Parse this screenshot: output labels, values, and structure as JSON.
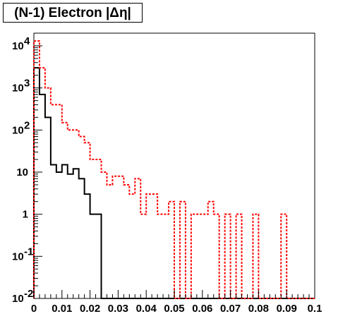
{
  "chart_data": {
    "type": "line",
    "title": "(N-1) Electron |Δη|",
    "xlabel": "",
    "ylabel": "",
    "x_range": [
      0,
      0.1
    ],
    "y_range": [
      0.01,
      20000
    ],
    "y_scale": "log",
    "x_tick_labels": [
      "0",
      "0.01",
      "0.02",
      "0.03",
      "0.04",
      "0.05",
      "0.06",
      "0.07",
      "0.08",
      "0.09",
      "0.1"
    ],
    "y_tick_labels": [
      {
        "value": 0.01,
        "base": "10",
        "exp": "-2"
      },
      {
        "value": 0.1,
        "base": "10",
        "exp": "-1"
      },
      {
        "value": 1,
        "base": "1",
        "exp": ""
      },
      {
        "value": 10,
        "base": "10",
        "exp": ""
      },
      {
        "value": 100,
        "base": "10",
        "exp": "2"
      },
      {
        "value": 1000,
        "base": "10",
        "exp": "3"
      },
      {
        "value": 10000,
        "base": "10",
        "exp": "4"
      }
    ],
    "bin_width": 0.002,
    "series": [
      {
        "color": "#000000",
        "style": "solid",
        "values": [
          3000,
          700,
          200,
          15,
          10,
          15,
          9,
          12,
          7,
          3,
          1,
          1,
          0,
          0,
          0,
          0,
          0,
          0,
          0,
          0,
          0,
          0,
          0,
          0,
          0,
          0,
          0,
          0,
          0,
          0,
          0,
          0,
          0,
          0,
          0,
          0,
          0,
          0,
          0,
          0,
          0,
          0,
          0,
          0,
          0,
          0,
          0,
          0,
          0,
          0
        ]
      },
      {
        "color": "#ff0000",
        "style": "dashed",
        "values": [
          13000,
          3000,
          1000,
          400,
          400,
          150,
          100,
          100,
          70,
          50,
          20,
          20,
          10,
          5,
          8,
          8,
          5,
          3,
          7,
          1,
          3,
          3,
          1,
          1,
          2,
          0,
          2,
          0,
          1,
          1,
          1,
          2,
          1,
          0,
          1,
          0,
          1,
          0,
          0,
          1,
          0,
          0,
          0,
          0,
          1,
          0,
          0,
          0,
          0,
          0
        ]
      }
    ]
  }
}
